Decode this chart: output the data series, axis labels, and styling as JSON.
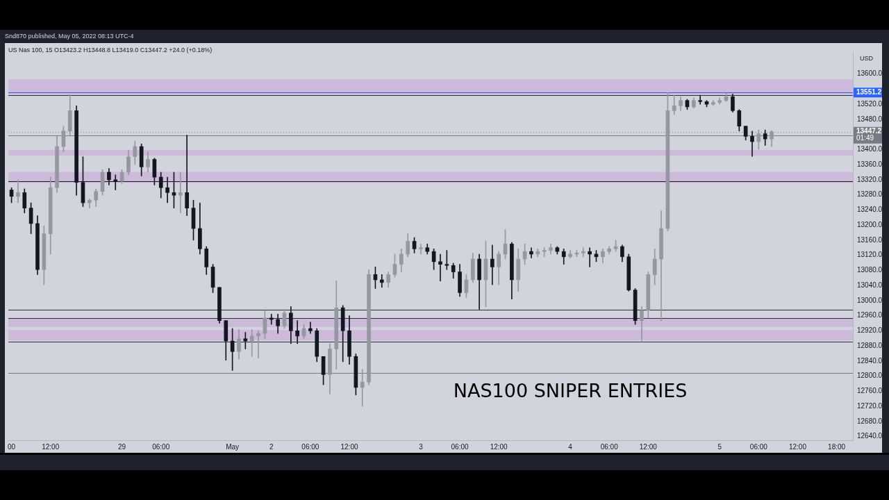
{
  "chart_data": {
    "type": "candlestick",
    "title": "NAS100 SNIPER ENTRIES",
    "subtitle": "US Nas 100, 15  O13423.2 H13448.8 L13419.0 C13447.2 +24.0 (+0.18%)",
    "ylabel": "USD",
    "annotations": [
      "Snd870 published, May 05, 2022 08:13 UTC-4"
    ],
    "categories": [
      "00",
      null,
      null,
      null,
      null,
      null,
      "12:00",
      null,
      null,
      null,
      null,
      null,
      null,
      null,
      null,
      null,
      null,
      "29",
      null,
      null,
      null,
      null,
      null,
      "06:00",
      null,
      null,
      null,
      null,
      null,
      null,
      null,
      null,
      null,
      null,
      "May",
      null,
      null,
      null,
      null,
      null,
      "2",
      null,
      null,
      null,
      null,
      null,
      "06:00",
      null,
      null,
      null,
      null,
      null,
      "12:00",
      null,
      null,
      null,
      null,
      null,
      null,
      null,
      null,
      null,
      null,
      "3",
      null,
      null,
      null,
      null,
      null,
      "06:00",
      null,
      null,
      null,
      null,
      null,
      "12:00",
      null,
      null,
      null,
      null,
      null,
      null,
      null,
      null,
      null,
      null,
      "4",
      null,
      null,
      null,
      null,
      null,
      "06:00",
      null,
      null,
      null,
      null,
      null,
      "12:00",
      null,
      null,
      null,
      null,
      null,
      null,
      null,
      null,
      null,
      null,
      "5",
      null,
      null,
      null,
      null,
      null,
      "06:00",
      null,
      null,
      null,
      null,
      null,
      "12:00",
      null,
      null,
      null,
      null,
      null,
      "18:00",
      null,
      null
    ],
    "ohlc": [
      [
        13293,
        13299,
        13259,
        13276
      ],
      [
        13276,
        13320,
        13259,
        13286
      ],
      [
        13286,
        13296,
        13232,
        13245
      ],
      [
        13245,
        13259,
        13177,
        13204
      ],
      [
        13204,
        13225,
        13069,
        13082
      ],
      [
        13082,
        13198,
        13042,
        13177
      ],
      [
        13177,
        13327,
        13123,
        13299
      ],
      [
        13299,
        13435,
        13286,
        13408
      ],
      [
        13408,
        13462,
        13394,
        13449
      ],
      [
        13449,
        13545,
        13435,
        13503
      ],
      [
        13503,
        13516,
        13279,
        13313
      ],
      [
        13313,
        13381,
        13249,
        13259
      ],
      [
        13259,
        13269,
        13245,
        13266
      ],
      [
        13266,
        13296,
        13249,
        13289
      ],
      [
        13289,
        13347,
        13279,
        13340
      ],
      [
        13340,
        13350,
        13306,
        13320
      ],
      [
        13320,
        13333,
        13293,
        13316
      ],
      [
        13316,
        13347,
        13310,
        13340
      ],
      [
        13340,
        13398,
        13333,
        13381
      ],
      [
        13381,
        13423,
        13360,
        13408
      ],
      [
        13408,
        13415,
        13330,
        13354
      ],
      [
        13354,
        13394,
        13340,
        13374
      ],
      [
        13374,
        13377,
        13306,
        13327
      ],
      [
        13327,
        13340,
        13272,
        13299
      ],
      [
        13299,
        13327,
        13259,
        13286
      ],
      [
        13286,
        13340,
        13245,
        13279
      ],
      [
        13279,
        13340,
        13232,
        13286
      ],
      [
        13286,
        13438,
        13225,
        13245
      ],
      [
        13245,
        13266,
        13160,
        13191
      ],
      [
        13191,
        13259,
        13123,
        13137
      ],
      [
        13137,
        13143,
        13069,
        13089
      ],
      [
        13089,
        13096,
        13021,
        13035
      ],
      [
        13035,
        13035,
        12940,
        12947
      ],
      [
        12947,
        12947,
        12842,
        12893
      ],
      [
        12893,
        12926,
        12815,
        12865
      ],
      [
        12865,
        12923,
        12845,
        12899
      ],
      [
        12899,
        12916,
        12872,
        12893
      ],
      [
        12893,
        12923,
        12852,
        12906
      ],
      [
        12906,
        12920,
        12848,
        12913
      ],
      [
        12913,
        12974,
        12899,
        12954
      ],
      [
        12954,
        12964,
        12937,
        12950
      ],
      [
        12950,
        12964,
        12913,
        12933
      ],
      [
        12933,
        12977,
        12926,
        12967
      ],
      [
        12967,
        12984,
        12886,
        12920
      ],
      [
        12920,
        12947,
        12886,
        12906
      ],
      [
        12906,
        12937,
        12899,
        12926
      ],
      [
        12926,
        12943,
        12913,
        12920
      ],
      [
        12920,
        12926,
        12838,
        12852
      ],
      [
        12852,
        12852,
        12777,
        12804
      ],
      [
        12804,
        12886,
        12753,
        12872
      ],
      [
        12872,
        13052,
        12818,
        12981
      ],
      [
        12981,
        12987,
        12838,
        12920
      ],
      [
        12920,
        12960,
        12831,
        12852
      ],
      [
        12852,
        12859,
        12750,
        12770
      ],
      [
        12770,
        12818,
        12720,
        12784
      ],
      [
        12784,
        13082,
        12777,
        13069
      ],
      [
        13069,
        13089,
        13032,
        13055
      ],
      [
        13055,
        13069,
        13035,
        13048
      ],
      [
        13048,
        13076,
        13035,
        13069
      ],
      [
        13069,
        13123,
        13062,
        13096
      ],
      [
        13096,
        13137,
        13076,
        13123
      ],
      [
        13123,
        13177,
        13116,
        13157
      ],
      [
        13157,
        13167,
        13126,
        13137
      ],
      [
        13137,
        13150,
        13123,
        13140
      ],
      [
        13140,
        13150,
        13123,
        13130
      ],
      [
        13130,
        13137,
        13082,
        13103
      ],
      [
        13103,
        13123,
        13052,
        13096
      ],
      [
        13096,
        13133,
        13082,
        13093
      ],
      [
        13093,
        13099,
        13059,
        13076
      ],
      [
        13076,
        13096,
        13011,
        13021
      ],
      [
        13021,
        13069,
        13008,
        13055
      ],
      [
        13055,
        13126,
        13048,
        13110
      ],
      [
        13110,
        13123,
        12977,
        13055
      ],
      [
        13055,
        13157,
        12984,
        13110
      ],
      [
        13110,
        13147,
        13042,
        13089
      ],
      [
        13089,
        13130,
        13042,
        13123
      ],
      [
        13123,
        13188,
        13110,
        13150
      ],
      [
        13150,
        13154,
        13004,
        13055
      ],
      [
        13055,
        13137,
        13025,
        13110
      ],
      [
        13110,
        13150,
        13096,
        13130
      ],
      [
        13130,
        13140,
        13113,
        13123
      ],
      [
        13123,
        13137,
        13116,
        13130
      ],
      [
        13130,
        13140,
        13116,
        13133
      ],
      [
        13133,
        13150,
        13123,
        13140
      ],
      [
        13140,
        13143,
        13123,
        13130
      ],
      [
        13130,
        13137,
        13096,
        13116
      ],
      [
        13116,
        13133,
        13113,
        13123
      ],
      [
        13123,
        13133,
        13116,
        13126
      ],
      [
        13126,
        13140,
        13116,
        13130
      ],
      [
        13130,
        13140,
        13089,
        13123
      ],
      [
        13123,
        13133,
        13103,
        13116
      ],
      [
        13116,
        13137,
        13099,
        13130
      ],
      [
        13130,
        13143,
        13123,
        13137
      ],
      [
        13137,
        13160,
        13130,
        13143
      ],
      [
        13143,
        13147,
        13103,
        13116
      ],
      [
        13116,
        13123,
        13025,
        13028
      ],
      [
        13028,
        13032,
        12937,
        12947
      ],
      [
        12947,
        12984,
        12893,
        12974
      ],
      [
        12974,
        13076,
        12954,
        13069
      ],
      [
        13069,
        13137,
        13042,
        13110
      ],
      [
        13110,
        13238,
        12947,
        13191
      ],
      [
        13191,
        13551,
        13184,
        13503
      ],
      [
        13503,
        13544,
        13493,
        13516
      ],
      [
        13516,
        13540,
        13503,
        13530
      ],
      [
        13530,
        13533,
        13506,
        13513
      ],
      [
        13513,
        13537,
        13510,
        13530
      ],
      [
        13530,
        13544,
        13520,
        13527
      ],
      [
        13527,
        13530,
        13513,
        13520
      ],
      [
        13520,
        13530,
        13516,
        13525
      ],
      [
        13525,
        13537,
        13520,
        13530
      ],
      [
        13530,
        13549,
        13527,
        13540
      ],
      [
        13540,
        13547,
        13499,
        13503
      ],
      [
        13503,
        13506,
        13449,
        13462
      ],
      [
        13462,
        13462,
        13425,
        13435
      ],
      [
        13435,
        13449,
        13382,
        13421
      ],
      [
        13421,
        13452,
        13401,
        13442
      ],
      [
        13442,
        13452,
        13411,
        13428
      ],
      [
        13428,
        13450,
        13408,
        13447.2
      ],
      null,
      null,
      null,
      null,
      null,
      null,
      null,
      null,
      null,
      null,
      null,
      null
    ],
    "colors": [
      "#131722",
      "#9598a1",
      "#131722",
      "#131722",
      "#131722",
      "#9598a1",
      "#9598a1",
      "#9598a1",
      "#9598a1",
      "#9598a1",
      "#131722",
      "#131722",
      "#9598a1",
      "#9598a1",
      "#9598a1",
      "#131722",
      "#131722",
      "#9598a1",
      "#9598a1",
      "#9598a1",
      "#131722",
      "#9598a1",
      "#131722",
      "#131722",
      "#131722",
      "#131722",
      "#9598a1",
      "#131722",
      "#131722",
      "#131722",
      "#131722",
      "#131722",
      "#131722",
      "#131722",
      "#131722",
      "#9598a1",
      "#131722",
      "#9598a1",
      "#9598a1",
      "#9598a1",
      "#131722",
      "#131722",
      "#9598a1",
      "#131722",
      "#131722",
      "#9598a1",
      "#131722",
      "#131722",
      "#131722",
      "#9598a1",
      "#9598a1",
      "#131722",
      "#131722",
      "#131722",
      "#9598a1",
      "#9598a1",
      "#131722",
      "#131722",
      "#9598a1",
      "#9598a1",
      "#9598a1",
      "#9598a1",
      "#131722",
      "#9598a1",
      "#131722",
      "#131722",
      "#131722",
      "#131722",
      "#131722",
      "#131722",
      "#9598a1",
      "#9598a1",
      "#131722",
      "#9598a1",
      "#131722",
      "#9598a1",
      "#9598a1",
      "#131722",
      "#9598a1",
      "#9598a1",
      "#131722",
      "#9598a1",
      "#9598a1",
      "#9598a1",
      "#131722",
      "#131722",
      "#9598a1",
      "#9598a1",
      "#9598a1",
      "#131722",
      "#131722",
      "#9598a1",
      "#9598a1",
      "#9598a1",
      "#131722",
      "#131722",
      "#131722",
      "#9598a1",
      "#9598a1",
      "#9598a1",
      "#9598a1",
      "#9598a1",
      "#9598a1",
      "#9598a1",
      "#131722",
      "#9598a1",
      "#131722",
      "#131722",
      "#9598a1",
      "#9598a1",
      "#9598a1",
      "#131722",
      "#131722",
      "#131722",
      "#131722",
      "#9598a1",
      "#131722",
      "#9598a1",
      null,
      null,
      null,
      null,
      null,
      null,
      null,
      null,
      null,
      null,
      null,
      null
    ],
    "ylim": [
      12630,
      13660
    ],
    "yticks": [
      {
        "value": 12640,
        "label": "12640.0"
      },
      {
        "value": 12680,
        "label": "12680.0"
      },
      {
        "value": 12720,
        "label": "12720.0"
      },
      {
        "value": 12760,
        "label": "12760.0"
      },
      {
        "value": 12800,
        "label": "12800.0"
      },
      {
        "value": 12840,
        "label": "12840.0"
      },
      {
        "value": 12880,
        "label": "12880.0"
      },
      {
        "value": 12920,
        "label": "12920.0"
      },
      {
        "value": 12960,
        "label": "12960.0"
      },
      {
        "value": 13000,
        "label": "13000.0"
      },
      {
        "value": 13040,
        "label": "13040.0"
      },
      {
        "value": 13080,
        "label": "13080.0"
      },
      {
        "value": 13120,
        "label": "13120.0"
      },
      {
        "value": 13160,
        "label": "13160.0"
      },
      {
        "value": 13200,
        "label": "13200.0"
      },
      {
        "value": 13240,
        "label": "13240.0"
      },
      {
        "value": 13280,
        "label": "13280.0"
      },
      {
        "value": 13320,
        "label": "13320.0"
      },
      {
        "value": 13360,
        "label": "13360.0"
      },
      {
        "value": 13400,
        "label": "13400.0"
      },
      {
        "value": 13480,
        "label": "13480.0"
      },
      {
        "value": 13520,
        "label": "13520.0"
      },
      {
        "value": 13600,
        "label": "13600.0"
      }
    ],
    "ref_lines": [
      {
        "axis": "y",
        "value": 13545,
        "color": "#2a2e39"
      },
      {
        "axis": "y",
        "value": 13551.2,
        "label": "13551.2",
        "color": "#2962ff"
      },
      {
        "axis": "y",
        "value": 13447.2,
        "label": "13447.2\n01:49",
        "color": "#787b86",
        "line_style": "dotted"
      },
      {
        "axis": "y",
        "value": 13437,
        "color": "#787b86"
      },
      {
        "axis": "y",
        "value": 13316,
        "color": "#131722"
      },
      {
        "axis": "y",
        "value": 12975,
        "color": "#2a2e39"
      },
      {
        "axis": "y",
        "value": 12953,
        "color": "#2a2e39"
      },
      {
        "axis": "y",
        "value": 12892,
        "color": "#2a2e39"
      },
      {
        "axis": "y",
        "value": 12809,
        "color": "#787b86"
      }
    ],
    "bands": [
      {
        "axis": "y",
        "from": 13545,
        "to": 13586,
        "color": "#cdb9d9"
      },
      {
        "axis": "y",
        "from": 13384,
        "to": 13399,
        "color": "#cdb9d9"
      },
      {
        "axis": "y",
        "from": 13312,
        "to": 13341,
        "color": "#cdb9d9"
      },
      {
        "axis": "y",
        "from": 12930,
        "to": 12953,
        "color": "#cdb9d9"
      },
      {
        "axis": "y",
        "from": 12895,
        "to": 12922,
        "color": "#cdb9d9"
      }
    ],
    "grid": false,
    "legend": false
  }
}
